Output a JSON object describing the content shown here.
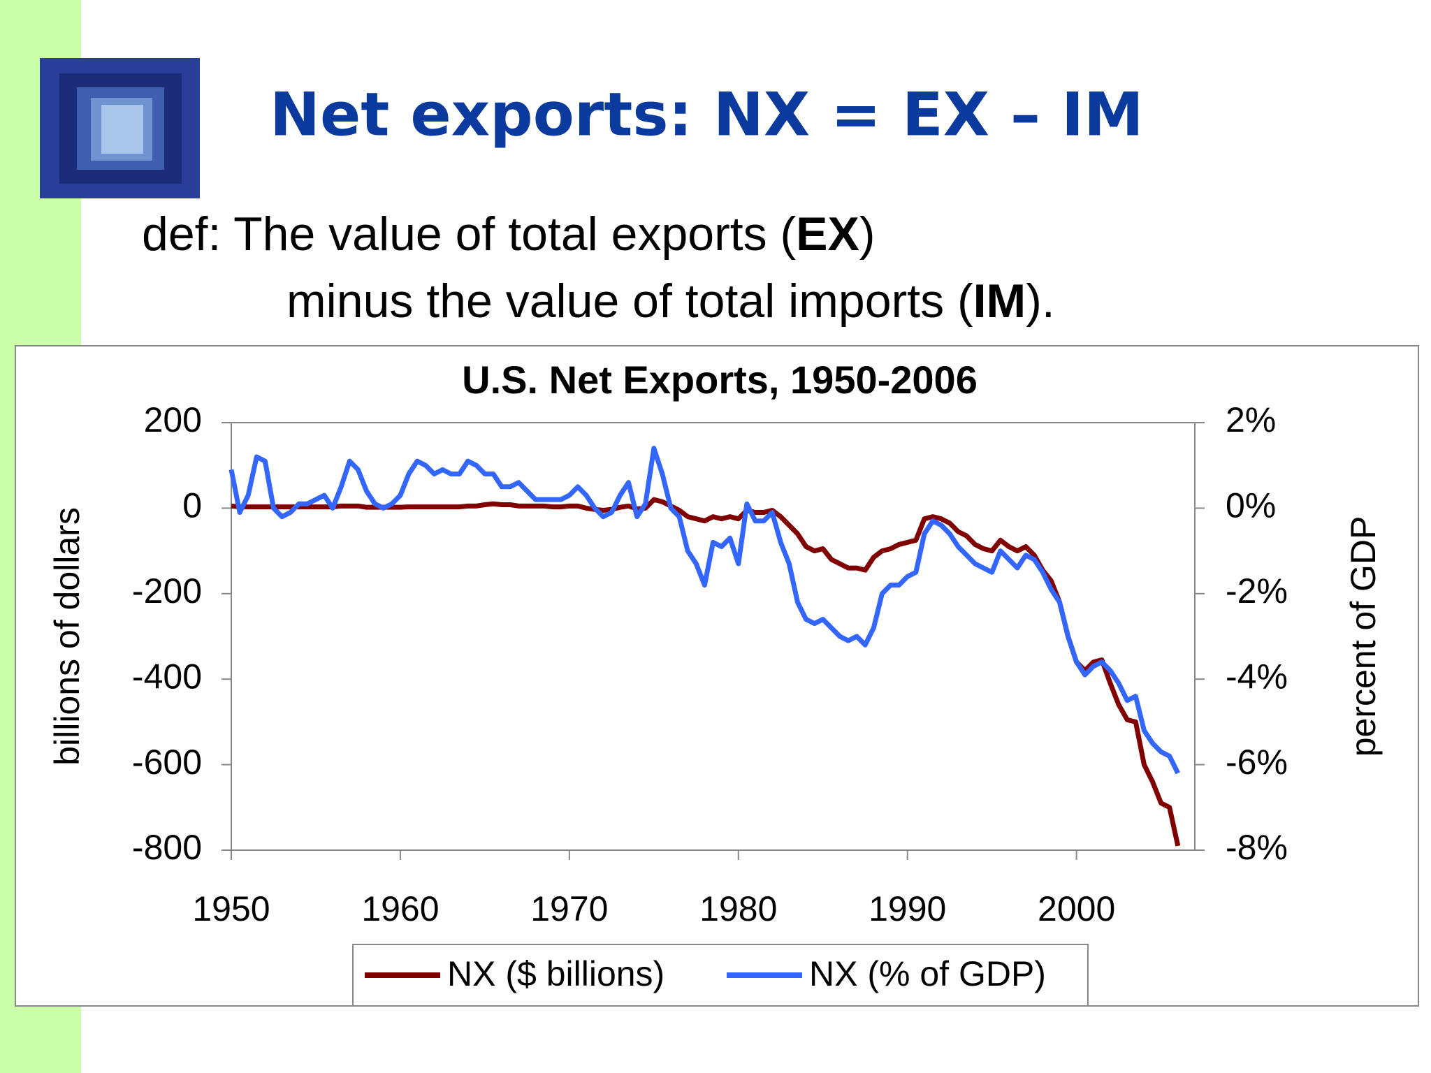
{
  "title": "Net exports:  NX = EX – IM",
  "definition": {
    "line1": [
      "def:  The value of total exports (",
      "EX",
      ")"
    ],
    "line2": [
      "minus the value of total imports (",
      "IM",
      ")."
    ]
  },
  "chart_data": {
    "type": "line",
    "title": "U.S. Net Exports, 1950-2006",
    "ylabel": "billions of dollars",
    "y2label": "percent of GDP",
    "x": [
      1950,
      1950.5,
      1951,
      1951.5,
      1952,
      1952.5,
      1953,
      1953.5,
      1954,
      1954.5,
      1955,
      1955.5,
      1956,
      1956.5,
      1957,
      1957.5,
      1958,
      1958.5,
      1959,
      1959.5,
      1960,
      1960.5,
      1961,
      1961.5,
      1962,
      1962.5,
      1963,
      1963.5,
      1964,
      1964.5,
      1965,
      1965.5,
      1966,
      1966.5,
      1967,
      1967.5,
      1968,
      1968.5,
      1969,
      1969.5,
      1970,
      1970.5,
      1971,
      1971.5,
      1972,
      1972.5,
      1973,
      1973.5,
      1974,
      1974.5,
      1975,
      1975.5,
      1976,
      1976.5,
      1977,
      1977.5,
      1978,
      1978.5,
      1979,
      1979.5,
      1980,
      1980.5,
      1981,
      1981.5,
      1982,
      1982.5,
      1983,
      1983.5,
      1984,
      1984.5,
      1985,
      1985.5,
      1986,
      1986.5,
      1987,
      1987.5,
      1988,
      1988.5,
      1989,
      1989.5,
      1990,
      1990.5,
      1991,
      1991.5,
      1992,
      1992.5,
      1993,
      1993.5,
      1994,
      1994.5,
      1995,
      1995.5,
      1996,
      1996.5,
      1997,
      1997.5,
      1998,
      1998.5,
      1999,
      1999.5,
      2000,
      2000.5,
      2001,
      2001.5,
      2002,
      2002.5,
      2003,
      2003.5,
      2004,
      2004.5,
      2005,
      2005.5,
      2006
    ],
    "series": [
      {
        "name": "NX ($ billions)",
        "color": "#800000",
        "values": [
          5,
          3,
          3,
          3,
          3,
          3,
          3,
          3,
          3,
          3,
          3,
          3,
          3,
          5,
          5,
          5,
          2,
          2,
          2,
          2,
          2,
          3,
          3,
          3,
          3,
          3,
          3,
          3,
          5,
          5,
          8,
          10,
          8,
          8,
          5,
          5,
          5,
          5,
          3,
          3,
          5,
          5,
          0,
          -3,
          -5,
          -3,
          2,
          5,
          -2,
          0,
          20,
          15,
          5,
          -5,
          -20,
          -25,
          -30,
          -20,
          -25,
          -20,
          -25,
          -5,
          -10,
          -10,
          -5,
          -20,
          -40,
          -60,
          -90,
          -100,
          -95,
          -120,
          -130,
          -140,
          -140,
          -145,
          -115,
          -100,
          -95,
          -85,
          -80,
          -75,
          -25,
          -20,
          -25,
          -35,
          -55,
          -65,
          -85,
          -95,
          -100,
          -75,
          -90,
          -100,
          -90,
          -110,
          -145,
          -170,
          -220,
          -300,
          -360,
          -380,
          -360,
          -355,
          -410,
          -460,
          -495,
          -500,
          -600,
          -640,
          -690,
          -700,
          -790
        ]
      },
      {
        "name": "NX (% of GDP)",
        "color": "#3366ff",
        "axis": "y2",
        "values": [
          0.9,
          -0.1,
          0.3,
          1.2,
          1.1,
          0.0,
          -0.2,
          -0.1,
          0.1,
          0.1,
          0.2,
          0.3,
          0.0,
          0.5,
          1.1,
          0.9,
          0.4,
          0.1,
          0.0,
          0.1,
          0.3,
          0.8,
          1.1,
          1.0,
          0.8,
          0.9,
          0.8,
          0.8,
          1.1,
          1.0,
          0.8,
          0.8,
          0.5,
          0.5,
          0.6,
          0.4,
          0.2,
          0.2,
          0.2,
          0.2,
          0.3,
          0.5,
          0.3,
          0.0,
          -0.2,
          -0.1,
          0.3,
          0.6,
          -0.2,
          0.1,
          1.4,
          0.8,
          0.0,
          -0.2,
          -1.0,
          -1.3,
          -1.8,
          -0.8,
          -0.9,
          -0.7,
          -1.3,
          0.1,
          -0.3,
          -0.3,
          -0.1,
          -0.8,
          -1.3,
          -2.2,
          -2.6,
          -2.7,
          -2.6,
          -2.8,
          -3.0,
          -3.1,
          -3.0,
          -3.2,
          -2.8,
          -2.0,
          -1.8,
          -1.8,
          -1.6,
          -1.5,
          -0.6,
          -0.3,
          -0.4,
          -0.6,
          -0.9,
          -1.1,
          -1.3,
          -1.4,
          -1.5,
          -1.0,
          -1.2,
          -1.4,
          -1.1,
          -1.2,
          -1.5,
          -1.9,
          -2.2,
          -3.0,
          -3.6,
          -3.9,
          -3.7,
          -3.6,
          -3.8,
          -4.1,
          -4.5,
          -4.4,
          -5.2,
          -5.5,
          -5.7,
          -5.8,
          -6.2
        ]
      }
    ],
    "xlim": [
      1950,
      2007
    ],
    "xticks": [
      1950,
      1960,
      1970,
      1980,
      1990,
      2000
    ],
    "ylim": [
      -800,
      200
    ],
    "yticks": [
      -800,
      -600,
      -400,
      -200,
      0,
      200
    ],
    "y2lim": [
      -8,
      2
    ],
    "y2ticks": [
      {
        "value": -8,
        "label": "-8%"
      },
      {
        "value": -6,
        "label": "-6%"
      },
      {
        "value": -4,
        "label": "-4%"
      },
      {
        "value": -2,
        "label": "-2%"
      },
      {
        "value": 0,
        "label": "0%"
      },
      {
        "value": 2,
        "label": "2%"
      }
    ],
    "legend": "bottom"
  }
}
